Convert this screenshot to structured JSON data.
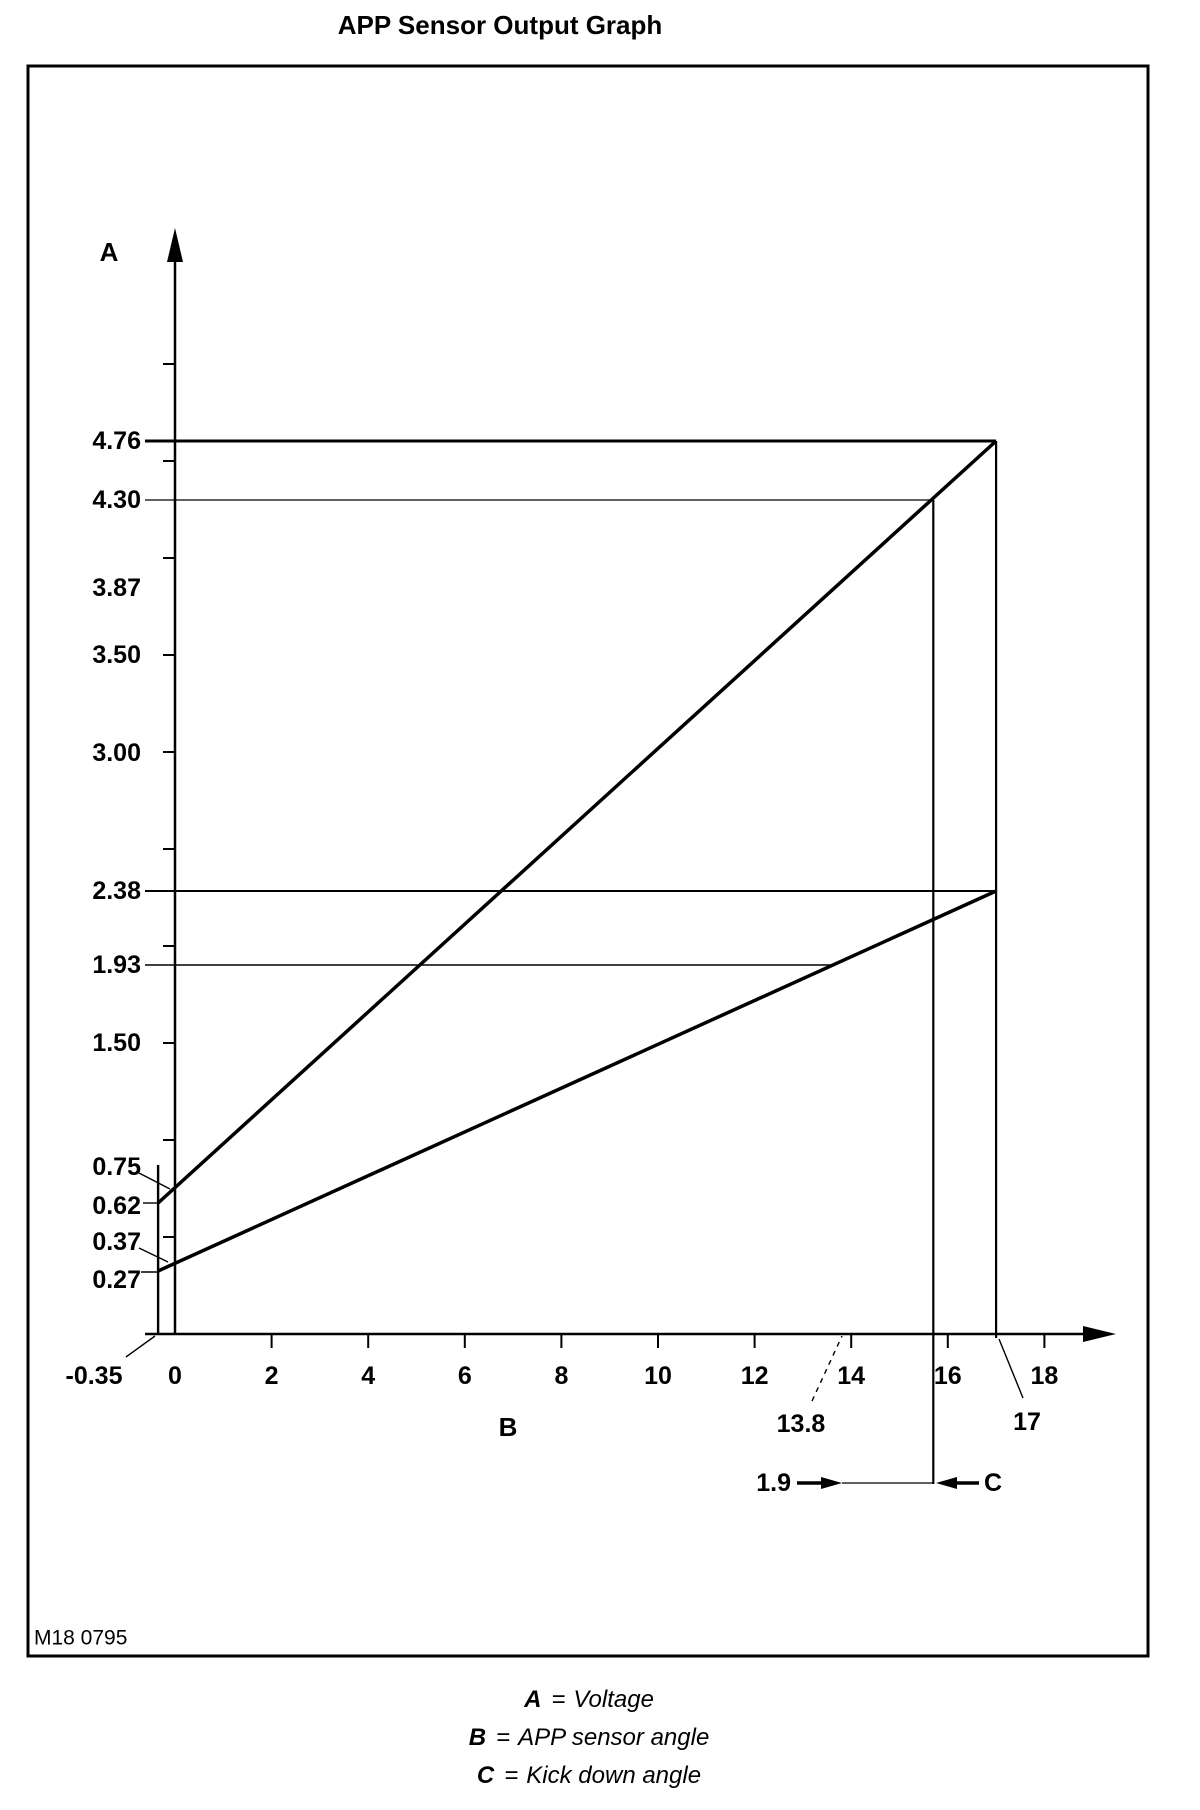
{
  "page": {
    "title": "APP Sensor Output Graph",
    "figure_code": "M18 0795",
    "ink_color": "#000000",
    "background_color": "#ffffff"
  },
  "legend": {
    "equals": "=",
    "items": [
      {
        "symbol": "A",
        "definition": "Voltage"
      },
      {
        "symbol": "B",
        "definition": "APP sensor angle"
      },
      {
        "symbol": "C",
        "definition": "Kick down angle"
      }
    ]
  },
  "chart_data": {
    "type": "line",
    "title": "APP Sensor Output Graph",
    "xlabel": "B",
    "ylabel": "A",
    "xlim": [
      -0.35,
      19.3
    ],
    "ylim": [
      0,
      5.8
    ],
    "grid": false,
    "legend_position": "below",
    "x_axis": {
      "label": "B",
      "meaning": "APP sensor angle",
      "tick_values": [
        0,
        2,
        4,
        6,
        8,
        10,
        12,
        14,
        16,
        18
      ],
      "tick_labels": [
        "0",
        "2",
        "4",
        "6",
        "8",
        "10",
        "12",
        "14",
        "16",
        "18"
      ],
      "callouts": [
        {
          "label": "-0.35",
          "value": -0.35
        },
        {
          "label": "13.8",
          "value": 13.8
        },
        {
          "label": "17",
          "value": 17
        }
      ]
    },
    "y_axis": {
      "label": "A",
      "meaning": "Voltage",
      "tick_interval": 0.5,
      "tick_min": 0.5,
      "tick_max": 5.0,
      "labeled_values": [
        {
          "label": "4.76",
          "value": 4.76
        },
        {
          "label": "4.30",
          "value": 4.3
        },
        {
          "label": "3.87",
          "value": 3.87
        },
        {
          "label": "3.50",
          "value": 3.5
        },
        {
          "label": "3.00",
          "value": 3.0
        },
        {
          "label": "2.38",
          "value": 2.38
        },
        {
          "label": "1.93",
          "value": 1.93
        },
        {
          "label": "1.50",
          "value": 1.5
        },
        {
          "label": "0.75",
          "value": 0.75
        },
        {
          "label": "0.62",
          "value": 0.62
        },
        {
          "label": "0.37",
          "value": 0.37
        },
        {
          "label": "0.27",
          "value": 0.27
        }
      ]
    },
    "series": [
      {
        "name": "upper-line",
        "points": [
          [
            -0.35,
            0.62
          ],
          [
            0,
            0.75
          ],
          [
            17,
            4.76
          ]
        ]
      },
      {
        "name": "lower-line",
        "points": [
          [
            -0.35,
            0.27
          ],
          [
            0,
            0.37
          ],
          [
            17,
            2.38
          ]
        ]
      }
    ],
    "reference_lines_y": [
      {
        "value": 4.76,
        "to_x": 17
      },
      {
        "value": 4.3,
        "to_x": 15.7
      },
      {
        "value": 2.38,
        "to_x": 17
      },
      {
        "value": 1.93,
        "to_x": 13.6
      }
    ],
    "reference_lines_x": [
      {
        "value": -0.35
      },
      {
        "value": 15.7
      },
      {
        "value": 17
      }
    ],
    "kick_down": {
      "span_label": "1.9",
      "span": 1.9,
      "from": 13.8,
      "to": 15.7,
      "name": "C"
    }
  }
}
